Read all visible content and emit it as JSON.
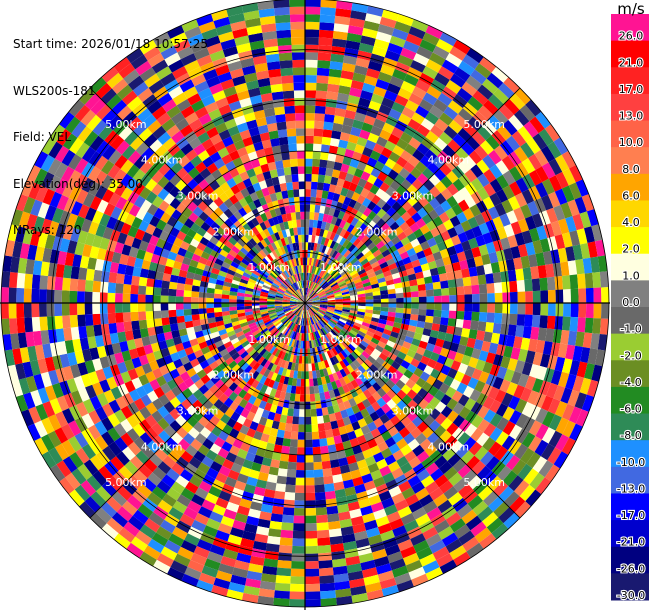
{
  "info": {
    "start_time": "Start time: 2026/01/18 10:57:25",
    "site": "WLS200s-181",
    "field": "Field: VEL",
    "elevation": "Elevation(deg): 35.00",
    "nrays": "NRays: 120"
  },
  "colorbar": {
    "unit": "m/s",
    "levels": [
      {
        "label": "26.0",
        "color": "#ff1493"
      },
      {
        "label": "21.0",
        "color": "#ff0000"
      },
      {
        "label": "17.0",
        "color": "#ff2222"
      },
      {
        "label": "13.0",
        "color": "#ff4040"
      },
      {
        "label": "10.0",
        "color": "#ff6347"
      },
      {
        "label": "8.0",
        "color": "#ff7f50"
      },
      {
        "label": "6.0",
        "color": "#ffa500"
      },
      {
        "label": "4.0",
        "color": "#ffd700"
      },
      {
        "label": "2.0",
        "color": "#ffff00"
      },
      {
        "label": "1.0",
        "color": "#ffffe0"
      },
      {
        "label": "0.0",
        "color": "#808080"
      },
      {
        "label": "-1.0",
        "color": "#696969"
      },
      {
        "label": "-2.0",
        "color": "#9acd32"
      },
      {
        "label": "-4.0",
        "color": "#6b8e23"
      },
      {
        "label": "-6.0",
        "color": "#228b22"
      },
      {
        "label": "-8.0",
        "color": "#2e8b57"
      },
      {
        "label": "-10.0",
        "color": "#1e90ff"
      },
      {
        "label": "-13.0",
        "color": "#4169e1"
      },
      {
        "label": "-17.0",
        "color": "#0000ff"
      },
      {
        "label": "-21.0",
        "color": "#0000cd"
      },
      {
        "label": "-26.0",
        "color": "#000080"
      },
      {
        "label": "-30.0",
        "color": "#191970"
      }
    ]
  },
  "chart_data": {
    "type": "heatmap",
    "projection": "polar (PPI)",
    "rays": 120,
    "gates": 40,
    "range_rings_km": [
      1.0,
      2.0,
      3.0,
      4.0,
      5.0
    ],
    "ring_label_template": "{r}km",
    "ring_labels": [
      "1.00km",
      "2.00km",
      "3.00km",
      "4.00km",
      "5.00km"
    ],
    "max_range_km": 6.0,
    "radial_lines": true,
    "colormap": "VEL"
  }
}
